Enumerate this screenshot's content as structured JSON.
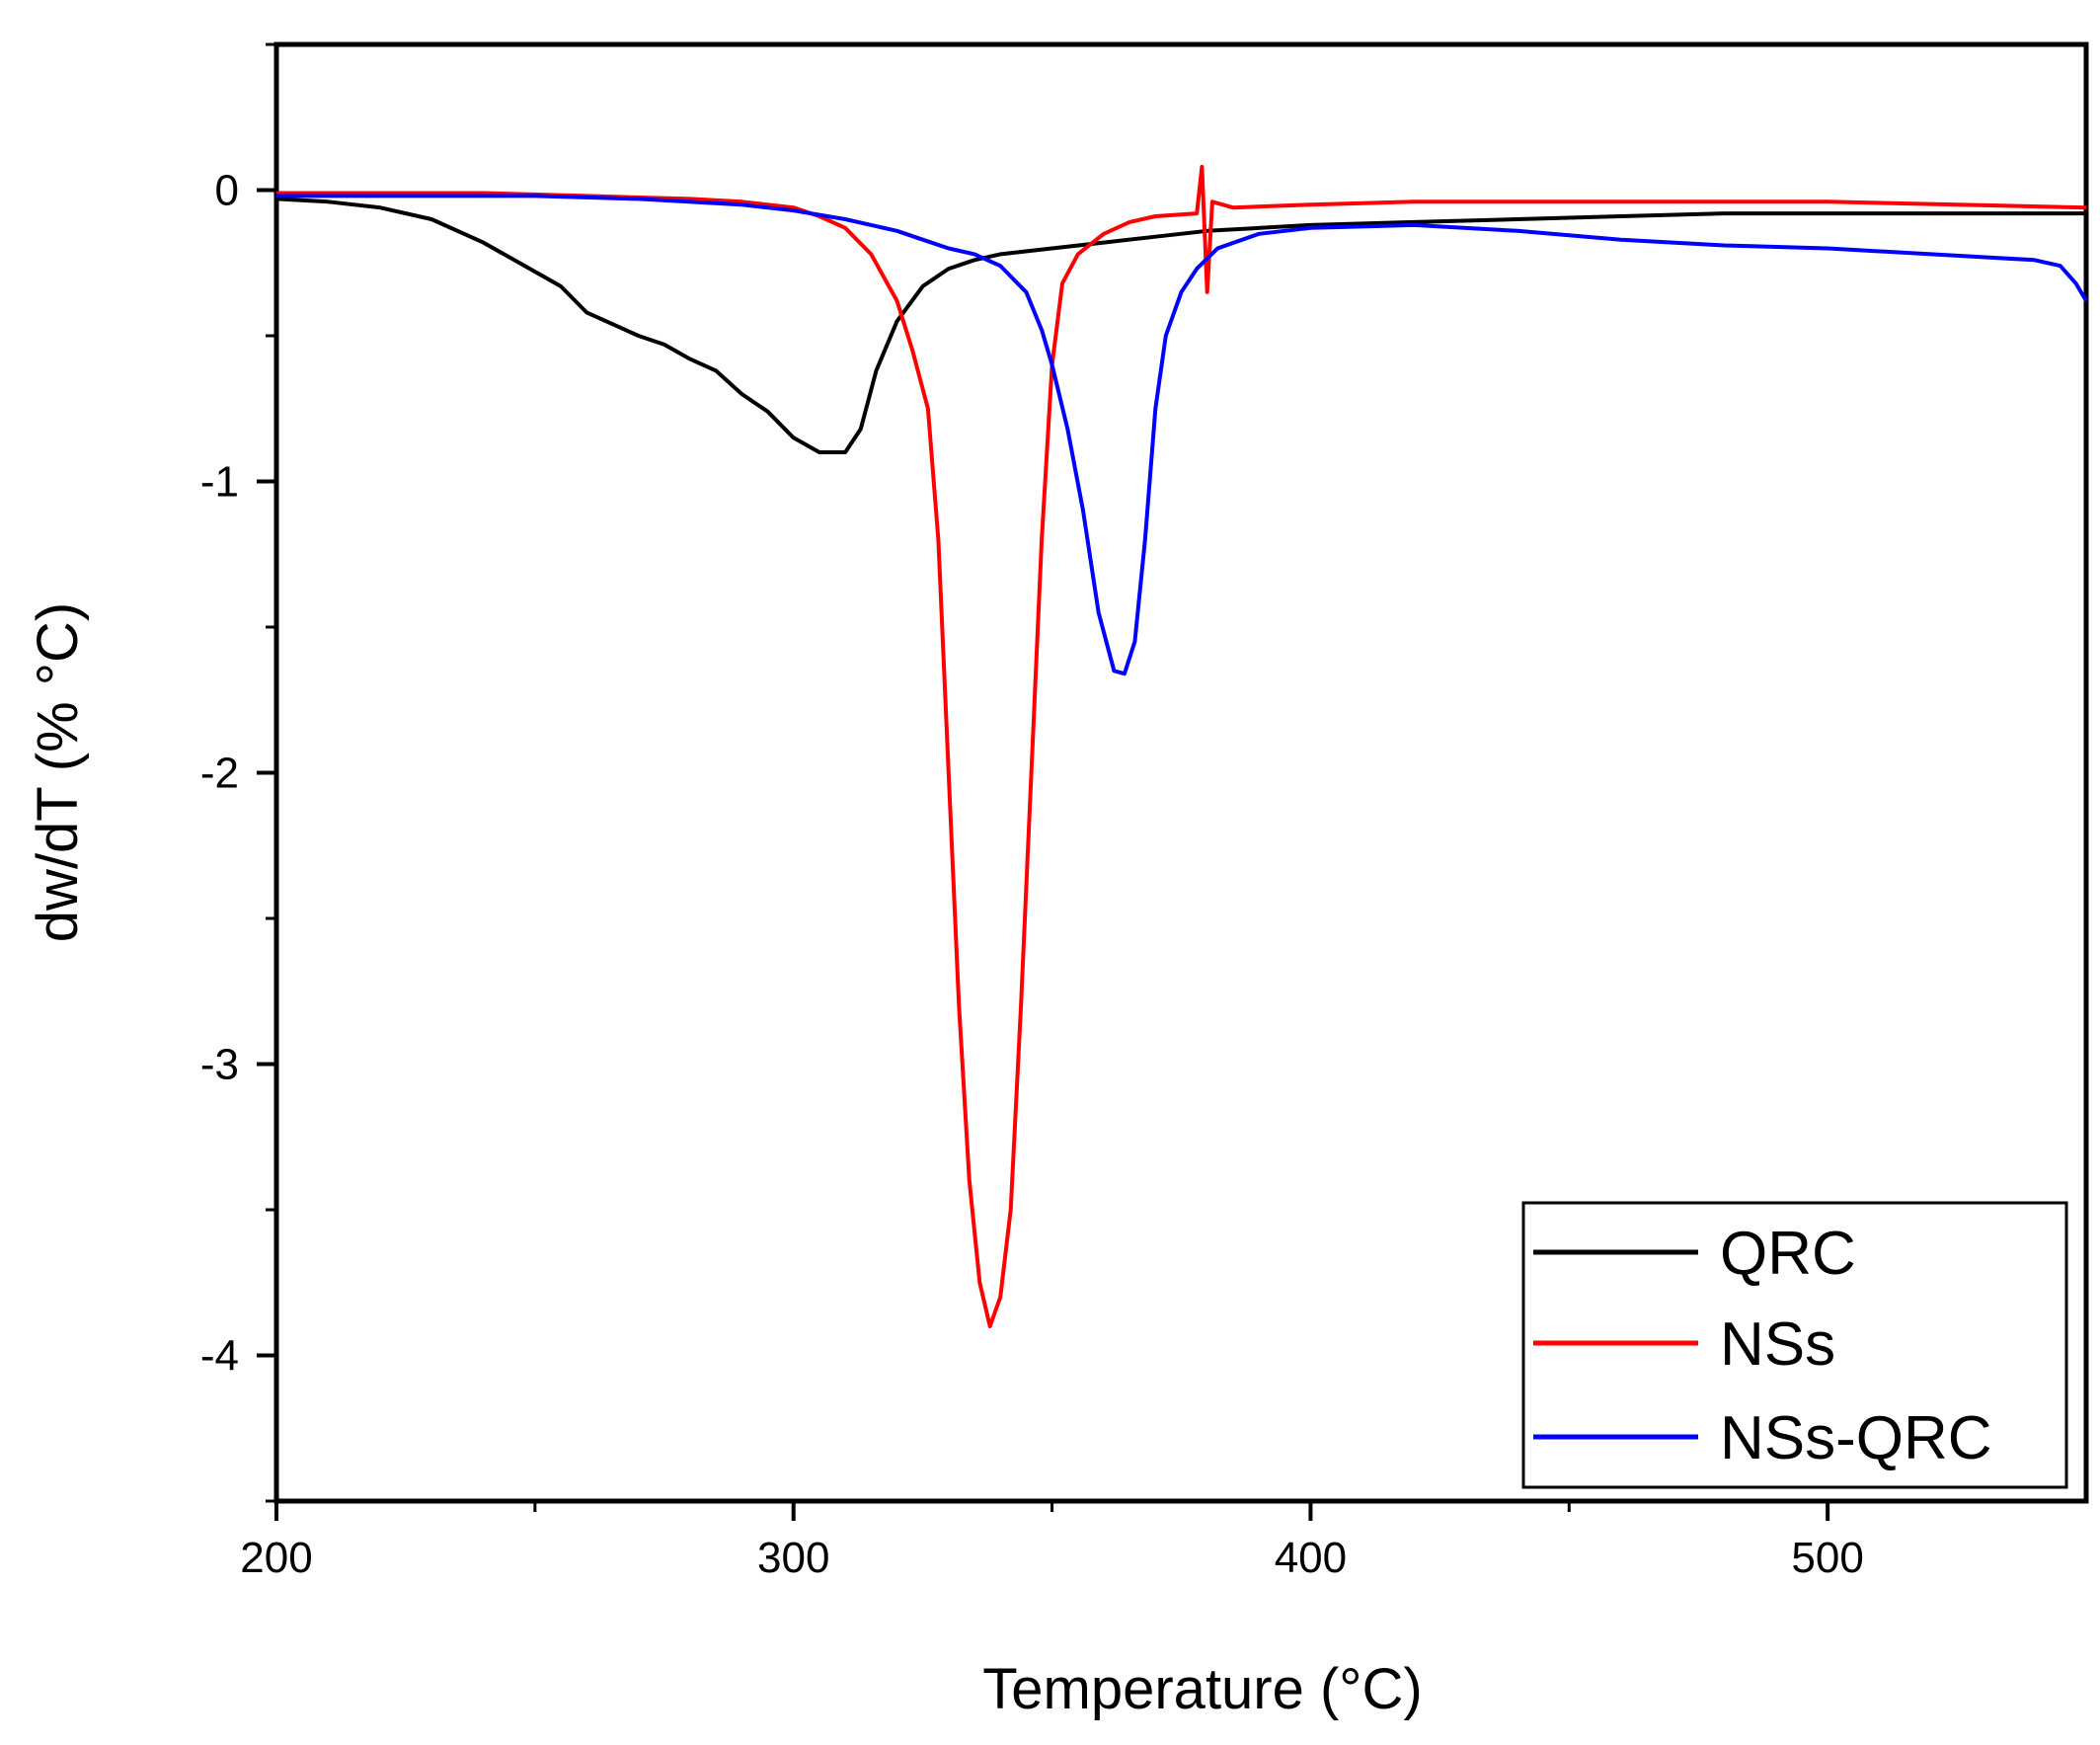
{
  "chart_data": {
    "type": "line",
    "xlabel": "Temperature (°C)",
    "ylabel": "dw/dT (% °C)",
    "xlim": [
      200,
      550
    ],
    "ylim": [
      -4.5,
      0.5
    ],
    "x_ticks": [
      200,
      300,
      400,
      500
    ],
    "y_ticks": [
      0,
      -1,
      -2,
      -3,
      -4
    ],
    "legend_position": "bottom-right",
    "grid": false,
    "series": [
      {
        "name": "QRC",
        "color": "#000000",
        "points": [
          [
            200,
            -0.03
          ],
          [
            210,
            -0.04
          ],
          [
            220,
            -0.06
          ],
          [
            230,
            -0.1
          ],
          [
            240,
            -0.18
          ],
          [
            250,
            -0.28
          ],
          [
            255,
            -0.33
          ],
          [
            260,
            -0.42
          ],
          [
            265,
            -0.46
          ],
          [
            270,
            -0.5
          ],
          [
            275,
            -0.53
          ],
          [
            280,
            -0.58
          ],
          [
            285,
            -0.62
          ],
          [
            290,
            -0.7
          ],
          [
            295,
            -0.76
          ],
          [
            300,
            -0.85
          ],
          [
            305,
            -0.9
          ],
          [
            310,
            -0.9
          ],
          [
            313,
            -0.82
          ],
          [
            316,
            -0.62
          ],
          [
            320,
            -0.45
          ],
          [
            325,
            -0.33
          ],
          [
            330,
            -0.27
          ],
          [
            335,
            -0.24
          ],
          [
            340,
            -0.22
          ],
          [
            350,
            -0.2
          ],
          [
            360,
            -0.18
          ],
          [
            370,
            -0.16
          ],
          [
            380,
            -0.14
          ],
          [
            400,
            -0.12
          ],
          [
            420,
            -0.11
          ],
          [
            440,
            -0.1
          ],
          [
            460,
            -0.09
          ],
          [
            480,
            -0.08
          ],
          [
            500,
            -0.08
          ],
          [
            520,
            -0.08
          ],
          [
            540,
            -0.08
          ],
          [
            550,
            -0.08
          ]
        ]
      },
      {
        "name": "NSs",
        "color": "#ff0000",
        "points": [
          [
            200,
            -0.01
          ],
          [
            220,
            -0.01
          ],
          [
            240,
            -0.01
          ],
          [
            260,
            -0.02
          ],
          [
            280,
            -0.03
          ],
          [
            290,
            -0.04
          ],
          [
            300,
            -0.06
          ],
          [
            305,
            -0.09
          ],
          [
            310,
            -0.13
          ],
          [
            315,
            -0.22
          ],
          [
            320,
            -0.38
          ],
          [
            323,
            -0.55
          ],
          [
            326,
            -0.75
          ],
          [
            328,
            -1.2
          ],
          [
            330,
            -2.0
          ],
          [
            332,
            -2.8
          ],
          [
            334,
            -3.4
          ],
          [
            336,
            -3.75
          ],
          [
            338,
            -3.9
          ],
          [
            340,
            -3.8
          ],
          [
            342,
            -3.5
          ],
          [
            344,
            -2.8
          ],
          [
            346,
            -2.0
          ],
          [
            348,
            -1.2
          ],
          [
            350,
            -0.6
          ],
          [
            352,
            -0.32
          ],
          [
            355,
            -0.22
          ],
          [
            360,
            -0.15
          ],
          [
            365,
            -0.11
          ],
          [
            370,
            -0.09
          ],
          [
            378,
            -0.08
          ],
          [
            379,
            0.08
          ],
          [
            380,
            -0.35
          ],
          [
            381,
            -0.04
          ],
          [
            385,
            -0.06
          ],
          [
            400,
            -0.05
          ],
          [
            420,
            -0.04
          ],
          [
            450,
            -0.04
          ],
          [
            500,
            -0.04
          ],
          [
            550,
            -0.06
          ]
        ]
      },
      {
        "name": "NSs-QRC",
        "color": "#0000ff",
        "points": [
          [
            200,
            -0.02
          ],
          [
            230,
            -0.02
          ],
          [
            250,
            -0.02
          ],
          [
            270,
            -0.03
          ],
          [
            290,
            -0.05
          ],
          [
            300,
            -0.07
          ],
          [
            310,
            -0.1
          ],
          [
            320,
            -0.14
          ],
          [
            325,
            -0.17
          ],
          [
            330,
            -0.2
          ],
          [
            335,
            -0.22
          ],
          [
            340,
            -0.26
          ],
          [
            345,
            -0.35
          ],
          [
            348,
            -0.48
          ],
          [
            350,
            -0.6
          ],
          [
            353,
            -0.82
          ],
          [
            356,
            -1.1
          ],
          [
            359,
            -1.45
          ],
          [
            362,
            -1.65
          ],
          [
            364,
            -1.66
          ],
          [
            366,
            -1.55
          ],
          [
            368,
            -1.2
          ],
          [
            370,
            -0.75
          ],
          [
            372,
            -0.5
          ],
          [
            375,
            -0.35
          ],
          [
            378,
            -0.27
          ],
          [
            382,
            -0.2
          ],
          [
            390,
            -0.15
          ],
          [
            400,
            -0.13
          ],
          [
            420,
            -0.12
          ],
          [
            440,
            -0.14
          ],
          [
            460,
            -0.17
          ],
          [
            480,
            -0.19
          ],
          [
            500,
            -0.2
          ],
          [
            520,
            -0.22
          ],
          [
            540,
            -0.24
          ],
          [
            545,
            -0.26
          ],
          [
            548,
            -0.32
          ],
          [
            550,
            -0.38
          ]
        ]
      }
    ]
  }
}
